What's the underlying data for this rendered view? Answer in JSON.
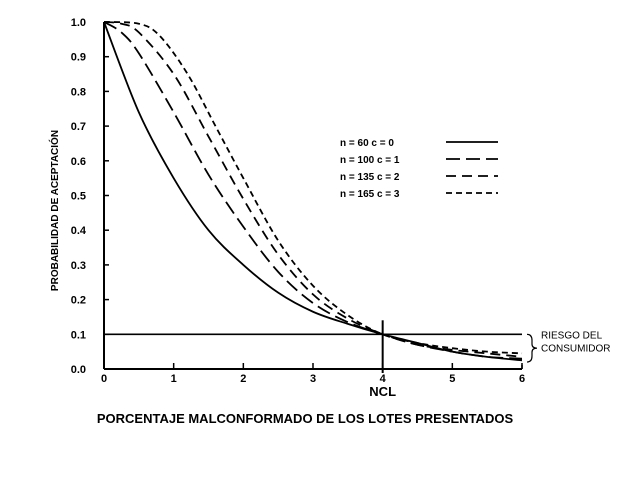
{
  "chart_data": {
    "type": "line",
    "xlabel": "PORCENTAJE MALCONFORMADO DE LOS LOTES PRESENTADOS",
    "ylabel": "PROBABILIDAD DE ACEPTACIÓN",
    "xlim": [
      0,
      6
    ],
    "ylim": [
      0,
      1.0
    ],
    "x_ticks": [
      "0",
      "1",
      "2",
      "3",
      "4",
      "5",
      "6"
    ],
    "y_ticks": [
      "0.0",
      "0.1",
      "0.2",
      "0.3",
      "0.4",
      "0.5",
      "0.6",
      "0.7",
      "0.8",
      "0.9",
      "1.0"
    ],
    "grid": false,
    "legend_position": "top-right",
    "series": [
      {
        "name": "n = 60 c = 0",
        "style": "solid",
        "points": [
          [
            0,
            1.0
          ],
          [
            0.5,
            0.74
          ],
          [
            1,
            0.55
          ],
          [
            1.5,
            0.4
          ],
          [
            2,
            0.3
          ],
          [
            2.5,
            0.22
          ],
          [
            3,
            0.165
          ],
          [
            3.5,
            0.13
          ],
          [
            4,
            0.1
          ],
          [
            4.5,
            0.075
          ],
          [
            5,
            0.05
          ],
          [
            5.5,
            0.035
          ],
          [
            6,
            0.025
          ]
        ]
      },
      {
        "name": "n = 100 c = 1",
        "style": "long-dash",
        "points": [
          [
            0,
            1.0
          ],
          [
            0.25,
            0.97
          ],
          [
            0.5,
            0.91
          ],
          [
            1,
            0.74
          ],
          [
            1.5,
            0.56
          ],
          [
            2,
            0.41
          ],
          [
            2.5,
            0.28
          ],
          [
            3,
            0.19
          ],
          [
            3.5,
            0.135
          ],
          [
            4,
            0.1
          ],
          [
            4.5,
            0.07
          ],
          [
            5,
            0.05
          ],
          [
            5.5,
            0.035
          ],
          [
            6,
            0.03
          ]
        ]
      },
      {
        "name": "n = 135 c = 2",
        "style": "medium-dash",
        "points": [
          [
            0,
            1.0
          ],
          [
            0.25,
            0.995
          ],
          [
            0.5,
            0.97
          ],
          [
            1,
            0.85
          ],
          [
            1.5,
            0.67
          ],
          [
            2,
            0.49
          ],
          [
            2.5,
            0.33
          ],
          [
            3,
            0.215
          ],
          [
            3.5,
            0.145
          ],
          [
            4,
            0.1
          ],
          [
            4.5,
            0.07
          ],
          [
            5,
            0.055
          ],
          [
            5.5,
            0.045
          ],
          [
            6,
            0.035
          ]
        ]
      },
      {
        "name": "n = 165 c = 3",
        "style": "short-dash",
        "points": [
          [
            0,
            1.0
          ],
          [
            0.5,
            0.995
          ],
          [
            0.8,
            0.96
          ],
          [
            1.2,
            0.85
          ],
          [
            1.6,
            0.7
          ],
          [
            2,
            0.55
          ],
          [
            2.5,
            0.37
          ],
          [
            3,
            0.24
          ],
          [
            3.5,
            0.155
          ],
          [
            4,
            0.1
          ],
          [
            4.5,
            0.075
          ],
          [
            5,
            0.06
          ],
          [
            5.5,
            0.05
          ],
          [
            6,
            0.045
          ]
        ]
      }
    ],
    "reference_line": {
      "y": 0.1,
      "label": "RIESGO DEL CONSUMIDOR"
    },
    "marker_x": {
      "x": 4,
      "label": "NCL"
    }
  }
}
